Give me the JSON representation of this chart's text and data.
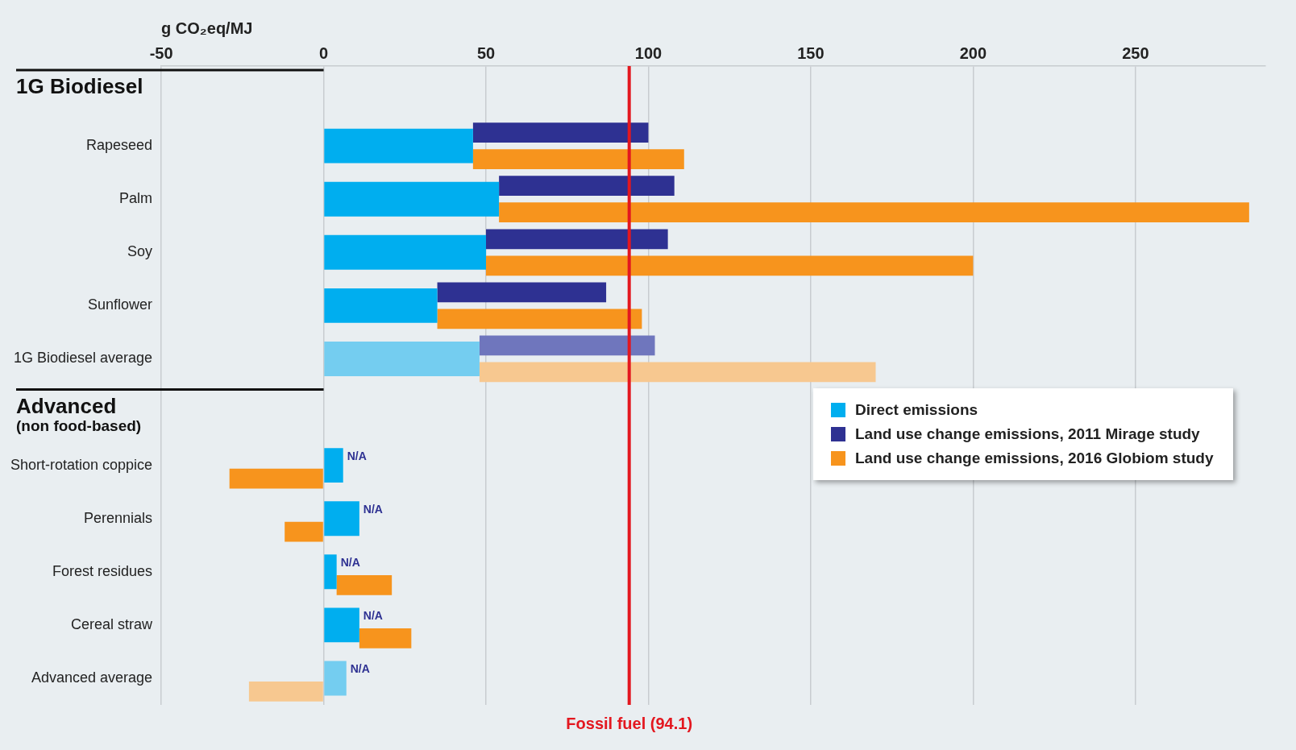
{
  "chart_data": {
    "type": "bar",
    "orientation": "horizontal",
    "xlabel": "g CO₂eq/MJ",
    "annotations": [
      "1G Biodiesel",
      "Advanced\n(non food-based)"
    ],
    "categories": [
      null,
      "Rapeseed",
      "Palm",
      "Soy",
      "Sunflower",
      "1G Biodiesel average",
      null,
      "Short-rotation coppice",
      "Perennials",
      "Forest residues",
      "Cereal straw",
      "Advanced average"
    ],
    "series": [
      {
        "name": "Direct emissions",
        "color": "#00aeef",
        "colors": [
          "#00aeef",
          "#00aeef",
          "#00aeef",
          "#00aeef",
          "#00aeef",
          "#74cdf0",
          "#00aeef",
          "#00aeef",
          "#00aeef",
          "#00aeef",
          "#00aeef",
          "#74cdf0"
        ],
        "values": [
          null,
          46,
          54,
          50,
          35,
          48,
          null,
          6,
          11,
          4,
          11,
          7
        ]
      },
      {
        "name": "Land use change emissions, 2011 Mirage study",
        "color": "#2e3192",
        "colors": [
          "#2e3192",
          "#2e3192",
          "#2e3192",
          "#2e3192",
          "#2e3192",
          "#6f76bd",
          "#2e3192",
          "#2e3192",
          "#2e3192",
          "#2e3192",
          "#2e3192",
          "#6f76bd"
        ],
        "values": [
          null,
          54,
          54,
          56,
          52,
          54,
          null,
          null,
          null,
          null,
          null,
          null
        ],
        "base": [
          null,
          46,
          54,
          50,
          35,
          48,
          null,
          null,
          null,
          null,
          null,
          null
        ],
        "value_labels": [
          null,
          null,
          null,
          null,
          null,
          null,
          null,
          "N/A",
          "N/A",
          "N/A",
          "N/A",
          "N/A"
        ]
      },
      {
        "name": "Land use change emissions, 2016 Globiom study",
        "color": "#f7941d",
        "colors": [
          "#f7941d",
          "#f7941d",
          "#f7941d",
          "#f7941d",
          "#f7941d",
          "#f7c890",
          "#f7941d",
          "#f7941d",
          "#f7941d",
          "#f7941d",
          "#f7941d",
          "#f7c890"
        ],
        "values": [
          null,
          65,
          231,
          150,
          63,
          122,
          null,
          -29,
          -12,
          17,
          16,
          -23
        ],
        "base": [
          null,
          46,
          54,
          50,
          35,
          48,
          null,
          0,
          0,
          4,
          11,
          0
        ]
      }
    ],
    "xlim": [
      -50,
      290
    ],
    "xticks": [
      -50,
      0,
      50,
      100,
      150,
      200,
      250
    ],
    "grid": "x",
    "legend": "right",
    "ref_lines": [
      {
        "axis": "x",
        "value": 94.1,
        "label": "Fossil fuel (94.1)",
        "color": "#e3171f"
      }
    ]
  }
}
